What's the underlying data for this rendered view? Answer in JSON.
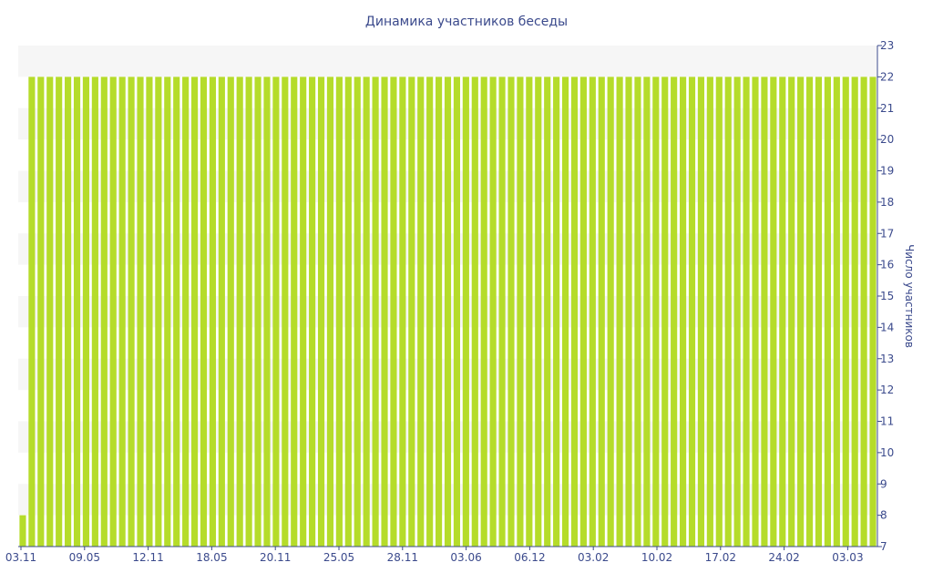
{
  "chart_data": {
    "type": "bar",
    "title": "Динамика участников беседы",
    "xlabel": "",
    "ylabel": "Число участников",
    "ylim": [
      7,
      23
    ],
    "y_axis_side": "right",
    "y_ticks": [
      7,
      8,
      9,
      10,
      11,
      12,
      13,
      14,
      15,
      16,
      17,
      18,
      19,
      20,
      21,
      22,
      23
    ],
    "x_tick_labels": [
      "03.11",
      "09.05",
      "12.11",
      "18.05",
      "20.11",
      "25.05",
      "28.11",
      "03.06",
      "06.12",
      "03.02",
      "10.02",
      "17.02",
      "24.02",
      "03.03"
    ],
    "bar_count": 95,
    "values": [
      8,
      22,
      22,
      22,
      22,
      22,
      22,
      22,
      22,
      22,
      22,
      22,
      22,
      22,
      22,
      22,
      22,
      22,
      22,
      22,
      22,
      22,
      22,
      22,
      22,
      22,
      22,
      22,
      22,
      22,
      22,
      22,
      22,
      22,
      22,
      22,
      22,
      22,
      22,
      22,
      22,
      22,
      22,
      22,
      22,
      22,
      22,
      22,
      22,
      22,
      22,
      22,
      22,
      22,
      22,
      22,
      22,
      22,
      22,
      22,
      22,
      22,
      22,
      22,
      22,
      22,
      22,
      22,
      22,
      22,
      22,
      22,
      22,
      22,
      22,
      22,
      22,
      22,
      22,
      22,
      22,
      22,
      22,
      22,
      22,
      22,
      22,
      22,
      22,
      22,
      22,
      22,
      22,
      22,
      22
    ],
    "grid": "alternating horizontal bands",
    "colors": {
      "bar": "#b5dc2a",
      "text": "#3b4a8c",
      "band": "#f6f6f6",
      "axis": "#3b4a8c"
    }
  }
}
